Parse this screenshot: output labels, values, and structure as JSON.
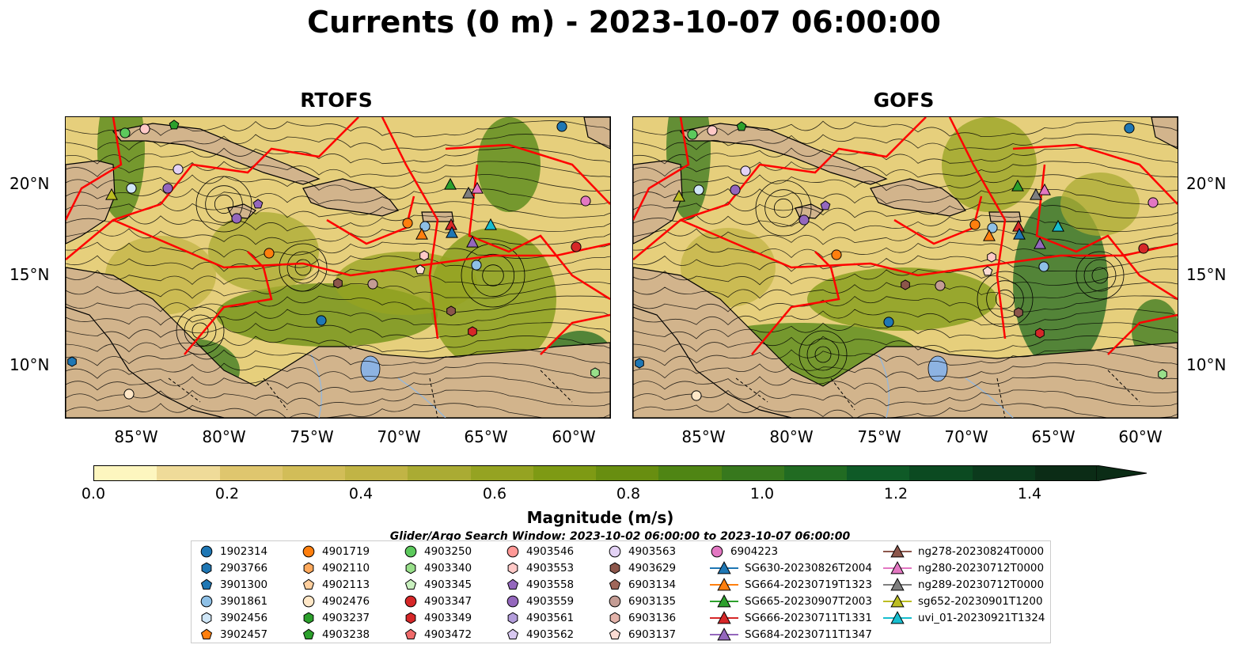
{
  "title": "Currents (0 m) - 2023-10-07 06:00:00",
  "maps": [
    {
      "title": "RTOFS"
    },
    {
      "title": "GOFS"
    }
  ],
  "lat_labels": [
    "20°N",
    "15°N",
    "10°N"
  ],
  "lon_labels": [
    "85°W",
    "80°W",
    "75°W",
    "70°W",
    "65°W",
    "60°W"
  ],
  "colorbar": {
    "label": "Magnitude (m/s)",
    "ticks": [
      "0.0",
      "0.2",
      "0.4",
      "0.6",
      "0.8",
      "1.0",
      "1.2",
      "1.4"
    ],
    "min": 0.0,
    "max": 1.5,
    "colors": [
      "#fdf6bf",
      "#efdb99",
      "#dfc66e",
      "#d2bd58",
      "#c1b445",
      "#aaab33",
      "#95a322",
      "#7e9a14",
      "#688e10",
      "#4f8514",
      "#37781d",
      "#216b22",
      "#0f5a27",
      "#0b4a21",
      "#0b3a1c",
      "#0b2c16"
    ]
  },
  "search_window": "Glider/Argo Search Window: 2023-10-02 06:00:00 to 2023-10-07 06:00:00",
  "legend": [
    {
      "label": "1902314",
      "marker": "circle",
      "color": "#1f77b4"
    },
    {
      "label": "2903766",
      "marker": "hexagon",
      "color": "#1f77b4"
    },
    {
      "label": "3901300",
      "marker": "pentagon",
      "color": "#1f77b4"
    },
    {
      "label": "3901861",
      "marker": "circle",
      "color": "#8ec0e6"
    },
    {
      "label": "3902456",
      "marker": "hexagon",
      "color": "#cfe6f7"
    },
    {
      "label": "3902457",
      "marker": "pentagon",
      "color": "#ff7f0e"
    },
    {
      "label": "4901719",
      "marker": "circle",
      "color": "#ff7f0e"
    },
    {
      "label": "4902110",
      "marker": "hexagon",
      "color": "#ffa95c"
    },
    {
      "label": "4902113",
      "marker": "pentagon",
      "color": "#ffcf9e"
    },
    {
      "label": "4902476",
      "marker": "circle",
      "color": "#ffe7c7"
    },
    {
      "label": "4903237",
      "marker": "hexagon",
      "color": "#2ca02c"
    },
    {
      "label": "4903238",
      "marker": "pentagon",
      "color": "#2ca02c"
    },
    {
      "label": "4903250",
      "marker": "circle",
      "color": "#5cc95c"
    },
    {
      "label": "4903340",
      "marker": "hexagon",
      "color": "#98df8a"
    },
    {
      "label": "4903345",
      "marker": "pentagon",
      "color": "#c9f0bf"
    },
    {
      "label": "4903347",
      "marker": "circle",
      "color": "#d62728"
    },
    {
      "label": "4903349",
      "marker": "hexagon",
      "color": "#d62728"
    },
    {
      "label": "4903472",
      "marker": "pentagon",
      "color": "#f06a6a"
    },
    {
      "label": "4903546",
      "marker": "circle",
      "color": "#ff9896"
    },
    {
      "label": "4903553",
      "marker": "hexagon",
      "color": "#ffc9c7"
    },
    {
      "label": "4903558",
      "marker": "pentagon",
      "color": "#9467bd"
    },
    {
      "label": "4903559",
      "marker": "circle",
      "color": "#9467bd"
    },
    {
      "label": "4903561",
      "marker": "hexagon",
      "color": "#b39ddb"
    },
    {
      "label": "4903562",
      "marker": "pentagon",
      "color": "#d8c8f0"
    },
    {
      "label": "4903563",
      "marker": "circle",
      "color": "#e3d2f5"
    },
    {
      "label": "4903629",
      "marker": "hexagon",
      "color": "#8c564b"
    },
    {
      "label": "6903134",
      "marker": "pentagon",
      "color": "#a0675a"
    },
    {
      "label": "6903135",
      "marker": "circle",
      "color": "#c49c94"
    },
    {
      "label": "6903136",
      "marker": "hexagon",
      "color": "#e3b3aa"
    },
    {
      "label": "6903137",
      "marker": "pentagon",
      "color": "#fbdcd4"
    },
    {
      "label": "6904223",
      "marker": "circle",
      "color": "#e377c2"
    },
    {
      "label": "SG630-20230826T2004",
      "marker": "triangle",
      "color": "#1f77b4"
    },
    {
      "label": "SG664-20230719T1323",
      "marker": "triangle",
      "color": "#ff7f0e"
    },
    {
      "label": "SG665-20230907T2003",
      "marker": "triangle",
      "color": "#2ca02c"
    },
    {
      "label": "SG666-20230711T1331",
      "marker": "triangle",
      "color": "#d62728"
    },
    {
      "label": "SG684-20230711T1347",
      "marker": "triangle",
      "color": "#9467bd"
    },
    {
      "label": "ng278-20230824T0000",
      "marker": "triangle",
      "color": "#8c564b"
    },
    {
      "label": "ng280-20230712T0000",
      "marker": "triangle",
      "color": "#e377c2"
    },
    {
      "label": "ng289-20230712T0000",
      "marker": "triangle",
      "color": "#7f7f7f"
    },
    {
      "label": "sg652-20230901T1200",
      "marker": "triangle",
      "color": "#bcbd22"
    },
    {
      "label": "uvi_01-20230921T1324",
      "marker": "triangle",
      "color": "#17becf"
    }
  ]
}
